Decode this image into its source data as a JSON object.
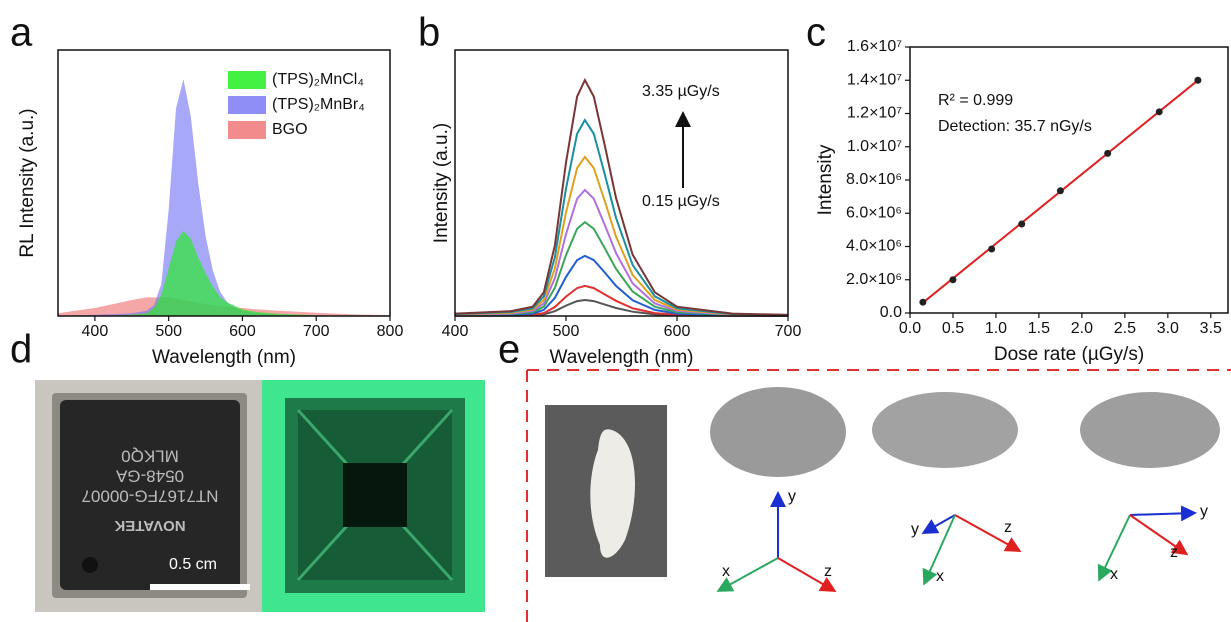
{
  "chart_data": [
    {
      "type": "area",
      "label": "a",
      "xlabel": "Wavelength (nm)",
      "ylabel": "RL Intensity (a.u.)",
      "x": [
        350,
        400,
        450,
        470,
        480,
        490,
        500,
        510,
        520,
        530,
        540,
        550,
        560,
        570,
        580,
        600,
        620,
        650,
        700,
        750,
        800
      ],
      "xlim": [
        350,
        800
      ],
      "xticks": [
        400,
        500,
        600,
        700,
        800
      ],
      "ylim": [
        0,
        100
      ],
      "legend": "upper right",
      "series": [
        {
          "name": "(TPS)₂MnCl₄",
          "color": "#22ee22",
          "values": [
            0,
            0,
            0.5,
            1,
            3,
            8,
            18,
            28,
            32,
            29,
            22,
            16,
            11,
            7,
            5,
            2.5,
            1.5,
            0.8,
            0.3,
            0,
            0
          ]
        },
        {
          "name": "(TPS)₂MnBr₄",
          "color": "#7a7af5",
          "values": [
            0,
            0.5,
            1,
            2,
            4,
            12,
            40,
            78,
            89,
            75,
            50,
            30,
            17,
            9,
            5,
            2,
            1,
            0.5,
            0,
            0,
            0
          ]
        },
        {
          "name": "BGO",
          "color": "#f07878",
          "values": [
            1,
            3,
            6,
            7,
            7,
            7,
            7,
            6.5,
            6,
            5.5,
            5,
            4.5,
            4,
            3.8,
            3.5,
            3,
            2.5,
            2,
            1.2,
            0.6,
            0.3
          ]
        }
      ]
    },
    {
      "type": "line",
      "label": "b",
      "xlabel": "Wavelength (nm)",
      "ylabel": "Intensity (a.u.)",
      "x": [
        400,
        450,
        470,
        480,
        490,
        500,
        510,
        517,
        525,
        535,
        545,
        560,
        580,
        600,
        650,
        700
      ],
      "xlim": [
        400,
        700
      ],
      "xticks": [
        400,
        500,
        600,
        700
      ],
      "ylim": [
        0,
        100
      ],
      "annotations": [
        "3.35 µGy/s",
        "0.15 µGy/s"
      ],
      "series": [
        {
          "color": "#555555",
          "values": [
            0.1,
            0.1,
            0.2,
            0.6,
            1.8,
            3.9,
            5.6,
            6,
            5.6,
            4.3,
            3,
            1.6,
            0.6,
            0.2,
            0.1,
            0
          ]
        },
        {
          "color": "#e03030",
          "values": [
            0.1,
            0.2,
            0.5,
            1.1,
            3.4,
            7.3,
            10.5,
            11.3,
            10.5,
            8.1,
            5.7,
            2.9,
            1.1,
            0.5,
            0.1,
            0.1
          ]
        },
        {
          "color": "#1f5fd0",
          "values": [
            0.2,
            0.5,
            0.9,
            2.3,
            6.8,
            14.7,
            21,
            22.6,
            21,
            16.3,
            11.3,
            5.9,
            2.3,
            0.9,
            0.2,
            0.1
          ]
        },
        {
          "color": "#3aa55a",
          "values": [
            0.4,
            0.7,
            1.4,
            3.5,
            10.6,
            22.9,
            32.8,
            35.3,
            32.8,
            25.4,
            17.7,
            9.2,
            3.5,
            1.4,
            0.4,
            0.2
          ]
        },
        {
          "color": "#b070e0",
          "values": [
            0.5,
            0.9,
            1.9,
            4.7,
            14.2,
            30.8,
            44.1,
            47.4,
            44.1,
            34.1,
            23.7,
            12.3,
            4.7,
            1.9,
            0.5,
            0.2
          ]
        },
        {
          "color": "#e0a020",
          "values": [
            0.6,
            1.2,
            2.4,
            6,
            17.9,
            38.9,
            55.6,
            59.8,
            55.6,
            43.1,
            29.9,
            15.5,
            6,
            2.4,
            0.6,
            0.3
          ]
        },
        {
          "color": "#1a8fa0",
          "values": [
            0.7,
            1.5,
            2.9,
            7.4,
            22.1,
            47.9,
            68.5,
            73.7,
            68.5,
            53.1,
            36.9,
            19.2,
            7.4,
            2.9,
            0.7,
            0.4
          ]
        },
        {
          "color": "#7a3535",
          "values": [
            0.9,
            1.8,
            3.5,
            8.9,
            26.6,
            57.7,
            82.5,
            88.7,
            82.5,
            63.9,
            44.4,
            23.1,
            8.9,
            3.5,
            0.9,
            0.4
          ]
        }
      ]
    },
    {
      "type": "scatter",
      "label": "c",
      "xlabel": "Dose rate (µGy/s)",
      "ylabel": "Intensity",
      "xlim": [
        0,
        3.7
      ],
      "xticks": [
        {
          "value": 0,
          "label": "0.0"
        },
        0.5,
        {
          "value": 1,
          "label": "1.0"
        },
        1.5,
        {
          "value": 2,
          "label": "2.0"
        },
        2.5,
        {
          "value": 3,
          "label": "3.0"
        },
        3.5
      ],
      "ylim": [
        0,
        16000000
      ],
      "yticks": [
        {
          "value": 0,
          "label": "0.0"
        },
        {
          "value": 2000000,
          "label": "2.0×10⁶"
        },
        {
          "value": 4000000,
          "label": "4.0×10⁶"
        },
        {
          "value": 6000000,
          "label": "6.0×10⁶"
        },
        {
          "value": 8000000,
          "label": "8.0×10⁶"
        },
        {
          "value": 10000000,
          "label": "1.0×10⁷"
        },
        {
          "value": 12000000,
          "label": "1.2×10⁷"
        },
        {
          "value": 14000000,
          "label": "1.4×10⁷"
        },
        {
          "value": 16000000,
          "label": "1.6×10⁷"
        }
      ],
      "annotations": [
        "R² = 0.999",
        "Detection: 35.7 nGy/s"
      ],
      "series": [
        {
          "type": "line",
          "color": "#e02020",
          "x": [
            0.15,
            3.35
          ],
          "values": [
            620000,
            14000000
          ]
        },
        {
          "type": "scatter",
          "color": "#222222",
          "x": [
            0.15,
            0.5,
            0.95,
            1.3,
            1.75,
            2.3,
            2.9,
            3.35
          ],
          "values": [
            650000,
            2000000,
            3850000,
            5350000,
            7350000,
            9600000,
            12100000,
            14000000
          ]
        }
      ]
    }
  ],
  "panel_d": {
    "label": "d",
    "scale_bar": "0.5 cm",
    "chip_text": [
      "NT7167FG-00007",
      "0548-GA",
      "MLKQ0",
      "NOVATEK"
    ]
  },
  "panel_e": {
    "label": "e",
    "triads": [
      {
        "x": "x",
        "y": "y",
        "z": "z"
      },
      {
        "x": "x",
        "y": "y",
        "z": "z"
      },
      {
        "x": "x",
        "y": "y",
        "z": "z"
      }
    ]
  }
}
